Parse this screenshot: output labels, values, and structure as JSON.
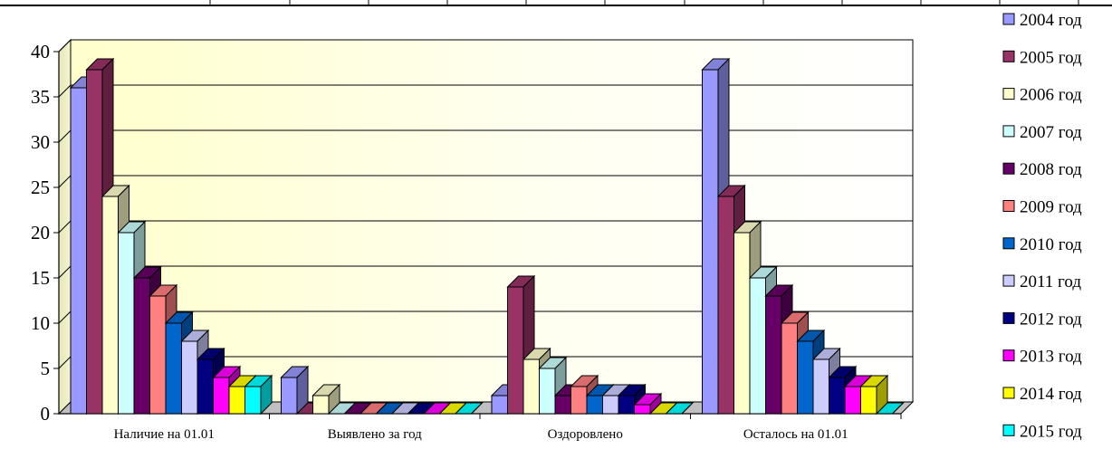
{
  "chart_data": {
    "type": "bar",
    "style": "3d-clustered-column",
    "categories": [
      "Наличие на 01.01",
      "Выявлено за год",
      "Оздоровлено",
      "Осталось на 01.01"
    ],
    "ylim": [
      0,
      40
    ],
    "yticks": [
      0,
      5,
      10,
      15,
      20,
      25,
      30,
      35,
      40
    ],
    "grid": true,
    "legend_position": "right",
    "series": [
      {
        "name": "2004 год",
        "color": "#9999FF",
        "values": [
          36,
          4,
          2,
          38
        ]
      },
      {
        "name": "2005 год",
        "color": "#993366",
        "values": [
          38,
          0,
          14,
          24
        ]
      },
      {
        "name": "2006 год",
        "color": "#FFFFCC",
        "values": [
          24,
          2,
          6,
          20
        ]
      },
      {
        "name": "2007 год",
        "color": "#CCFFFF",
        "values": [
          20,
          0,
          5,
          15
        ]
      },
      {
        "name": "2008 год",
        "color": "#660066",
        "values": [
          15,
          0,
          2,
          13
        ]
      },
      {
        "name": "2009 год",
        "color": "#FF8080",
        "values": [
          13,
          0,
          3,
          10
        ]
      },
      {
        "name": "2010 год",
        "color": "#0066CC",
        "values": [
          10,
          0,
          2,
          8
        ]
      },
      {
        "name": "2011 год",
        "color": "#CCCCFF",
        "values": [
          8,
          0,
          2,
          6
        ]
      },
      {
        "name": "2012 год",
        "color": "#000080",
        "values": [
          6,
          0,
          2,
          4
        ]
      },
      {
        "name": "2013 год",
        "color": "#FF00FF",
        "values": [
          4,
          0,
          1,
          3
        ]
      },
      {
        "name": "2014 год",
        "color": "#FFFF00",
        "values": [
          3,
          0,
          0,
          3
        ]
      },
      {
        "name": "2015 год",
        "color": "#00FFFF",
        "values": [
          3,
          0,
          0,
          0
        ]
      }
    ]
  }
}
